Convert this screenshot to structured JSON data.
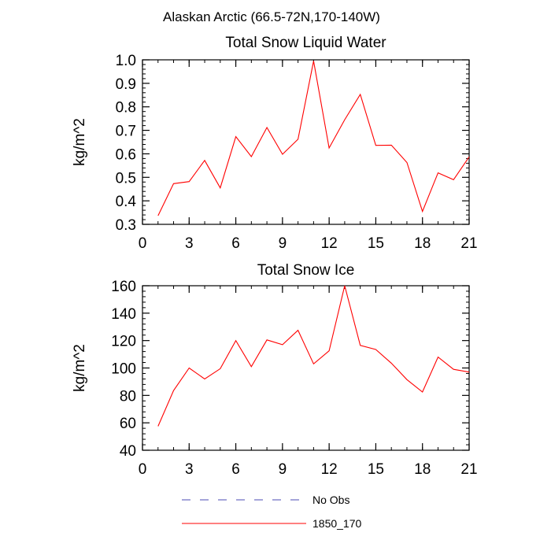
{
  "figure_title": "Alaskan Arctic (66.5-72N,170-140W)",
  "legend": [
    {
      "label": "No Obs",
      "color": "#4b4bb4",
      "dash": true
    },
    {
      "label": "1850_170",
      "color": "#ff0000",
      "dash": false
    }
  ],
  "chart_data": [
    {
      "type": "line",
      "title": "Total Snow Liquid Water",
      "xlabel": "",
      "ylabel": "kg/m^2",
      "xlim": [
        0,
        21
      ],
      "ylim": [
        0.3,
        1.0
      ],
      "xticks": [
        0,
        3,
        6,
        9,
        12,
        15,
        18,
        21
      ],
      "yticks": [
        0.3,
        0.4,
        0.5,
        0.6,
        0.7,
        0.8,
        0.9,
        1.0
      ],
      "ytick_labels": [
        "0.3",
        "0.4",
        "0.5",
        "0.6",
        "0.7",
        "0.8",
        "0.9",
        "1.0"
      ],
      "series": [
        {
          "name": "1850_170",
          "color": "#ff0000",
          "x": [
            1,
            2,
            3,
            4,
            5,
            6,
            7,
            8,
            9,
            10,
            11,
            12,
            13,
            14,
            15,
            16,
            17,
            18,
            19,
            20,
            21
          ],
          "values": [
            0.337,
            0.473,
            0.482,
            0.572,
            0.455,
            0.673,
            0.588,
            0.712,
            0.598,
            0.662,
            0.995,
            0.625,
            0.745,
            0.853,
            0.636,
            0.637,
            0.563,
            0.355,
            0.519,
            0.49,
            0.587
          ]
        }
      ]
    },
    {
      "type": "line",
      "title": "Total Snow Ice",
      "xlabel": "",
      "ylabel": "kg/m^2",
      "xlim": [
        0,
        21
      ],
      "ylim": [
        40,
        160
      ],
      "xticks": [
        0,
        3,
        6,
        9,
        12,
        15,
        18,
        21
      ],
      "yticks": [
        40,
        60,
        80,
        100,
        120,
        140,
        160
      ],
      "ytick_labels": [
        "40",
        "60",
        "80",
        "100",
        "120",
        "140",
        "160"
      ],
      "series": [
        {
          "name": "1850_170",
          "color": "#ff0000",
          "x": [
            1,
            2,
            3,
            4,
            5,
            6,
            7,
            8,
            9,
            10,
            11,
            12,
            13,
            14,
            15,
            16,
            17,
            18,
            19,
            20,
            21
          ],
          "values": [
            57.5,
            83.5,
            100,
            92,
            99.5,
            120,
            101,
            120.5,
            117,
            127.5,
            103,
            112.5,
            160,
            116.5,
            113.5,
            103.5,
            91.5,
            82.5,
            108,
            99,
            97
          ]
        }
      ]
    }
  ]
}
